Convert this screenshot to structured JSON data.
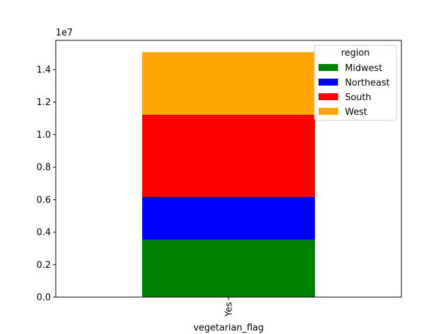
{
  "chart_data": {
    "type": "bar",
    "stacked": true,
    "categories": [
      "Yes"
    ],
    "series": [
      {
        "name": "Midwest",
        "values": [
          3520000
        ],
        "color": "#008000"
      },
      {
        "name": "Northeast",
        "values": [
          2650000
        ],
        "color": "#0000ff"
      },
      {
        "name": "South",
        "values": [
          5050000
        ],
        "color": "#ff0000"
      },
      {
        "name": "West",
        "values": [
          3850000
        ],
        "color": "#ffa500"
      }
    ],
    "xlabel": "vegetarian_flag",
    "ylabel": "",
    "ylim": [
      0,
      15800000
    ],
    "yticks": [
      0,
      2000000,
      4000000,
      6000000,
      8000000,
      10000000,
      12000000,
      14000000
    ],
    "ytick_labels": [
      "0.0",
      "0.2",
      "0.4",
      "0.6",
      "0.8",
      "1.0",
      "1.2",
      "1.4"
    ],
    "y_offset_label": "1e7",
    "legend": {
      "title": "region",
      "placement": "top-right"
    },
    "grid": false
  }
}
